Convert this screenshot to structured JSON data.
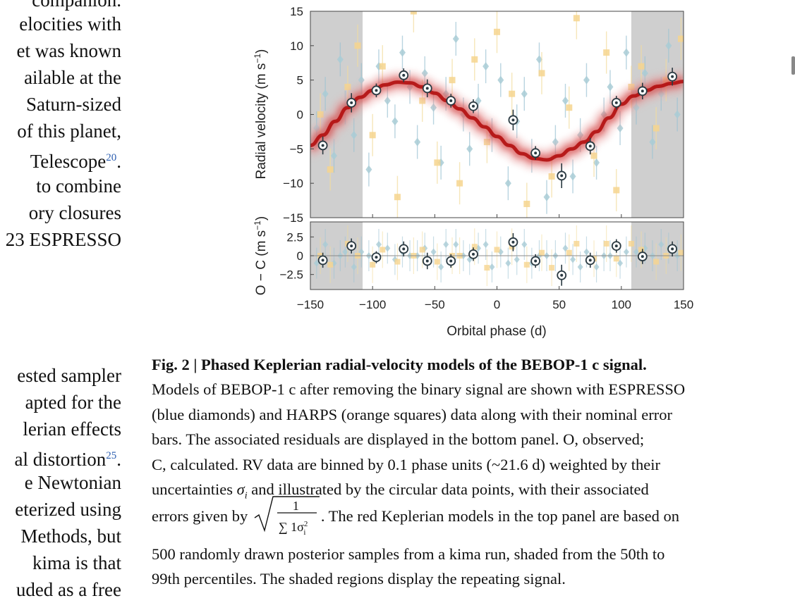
{
  "left_text": [
    "companion.",
    "elocities with",
    "et was known",
    "ailable at the",
    "Saturn-sized",
    "of this planet,",
    "Telescope",
    "to combine",
    "ory closures",
    "23 ESPRESSO",
    "ested sampler",
    "apted for the",
    "lerian effects",
    "al distortion",
    "e Newtonian",
    "eterized using",
    "Methods, but",
    "kima is that",
    "uded as a free"
  ],
  "left_refs": {
    "telescope": "20",
    "distortion": "25"
  },
  "figure": {
    "top_ylabel": "Radial velocity (m s",
    "bottom_ylabel": "O − C (m s",
    "unit_exp": "−1",
    "xlabel": "Orbital phase (d)",
    "top_yticks": [
      "15",
      "10",
      "5",
      "0",
      "−5",
      "−10",
      "−15"
    ],
    "bottom_yticks": [
      "2.5",
      "0",
      "−2.5"
    ],
    "xticks": [
      "−150",
      "−100",
      "−50",
      "0",
      "50",
      "100",
      "150"
    ]
  },
  "chart_data": {
    "type": "scatter",
    "xlabel": "Orbital phase (d)",
    "xlim": [
      -150,
      150
    ],
    "top_panel": {
      "ylabel": "Radial velocity (m s−1)",
      "ylim": [
        -15,
        15
      ],
      "binned_points": {
        "x": [
          -140,
          -117,
          -97,
          -75,
          -56,
          -37,
          -19,
          13,
          31,
          52,
          75,
          96,
          117,
          141
        ],
        "y": [
          -4.5,
          1.7,
          3.5,
          5.7,
          3.8,
          2.0,
          1.2,
          -0.8,
          -5.6,
          -8.9,
          -4.6,
          1.7,
          3.4,
          5.5
        ],
        "err": [
          1.3,
          1.4,
          1.0,
          1.0,
          1.3,
          1.0,
          1.0,
          1.5,
          1.0,
          1.8,
          1.2,
          1.0,
          1.2,
          1.3
        ]
      },
      "keplerian_model": {
        "x": [
          -150,
          -140,
          -130,
          -120,
          -110,
          -100,
          -90,
          -80,
          -70,
          -60,
          -50,
          -40,
          -30,
          -20,
          -10,
          0,
          10,
          20,
          30,
          40,
          50,
          60,
          70,
          80,
          90,
          100,
          110,
          120,
          130,
          140,
          150
        ],
        "y": [
          -4.5,
          -3.0,
          -1.0,
          1.0,
          2.5,
          3.5,
          4.3,
          4.7,
          4.6,
          4.0,
          3.1,
          2.0,
          0.8,
          -0.5,
          -1.8,
          -3.2,
          -4.5,
          -5.7,
          -6.4,
          -6.6,
          -6.0,
          -5.0,
          -4.0,
          -2.5,
          -0.5,
          1.5,
          2.7,
          3.5,
          4.1,
          4.5,
          4.8
        ]
      }
    },
    "bottom_panel": {
      "ylabel": "O − C (m s−1)",
      "ylim": [
        -4.5,
        4.5
      ],
      "binned_points": {
        "x": [
          -140,
          -117,
          -97,
          -75,
          -56,
          -37,
          -19,
          13,
          31,
          52,
          75,
          96,
          117,
          141
        ],
        "y": [
          -0.6,
          1.3,
          -0.2,
          0.9,
          -0.7,
          -0.7,
          0.2,
          1.8,
          -0.7,
          -2.6,
          -0.6,
          1.3,
          -0.1,
          0.9
        ],
        "err": [
          1.0,
          1.0,
          0.8,
          1.0,
          1.1,
          0.9,
          0.9,
          1.2,
          0.9,
          1.4,
          1.0,
          0.9,
          1.0,
          1.0
        ]
      }
    },
    "shaded_regions": [
      [
        -150,
        -108
      ],
      [
        108,
        150
      ]
    ],
    "espresso_points": {
      "x": [
        -145,
        -138,
        -131,
        -126,
        -122,
        -115,
        -109,
        -103,
        -95,
        -88,
        -82,
        -76,
        -70,
        -64,
        -58,
        -51,
        -45,
        -41,
        -33,
        -27,
        -22,
        -15,
        -9,
        -4,
        3,
        9,
        16,
        22,
        28,
        34,
        40,
        47,
        55,
        61,
        67,
        72,
        80,
        86,
        91,
        99,
        104,
        112,
        119,
        125,
        132,
        138,
        145
      ],
      "y": [
        -2,
        3,
        -6,
        8,
        1,
        -3,
        5,
        -8,
        7,
        2,
        -1,
        9,
        4,
        -4,
        6,
        1,
        -7,
        3,
        11,
        0,
        -5,
        2,
        7,
        -3,
        5,
        -10,
        -1,
        3,
        -6,
        8,
        -12,
        -4,
        2,
        -9,
        -3,
        5,
        -7,
        0,
        4,
        -2,
        9,
        1,
        6,
        -4,
        3,
        10,
        0
      ]
    },
    "harps_points": {
      "x": [
        -142,
        -134,
        -120,
        -112,
        -100,
        -92,
        -80,
        -67,
        -60,
        -48,
        -36,
        -30,
        -18,
        -8,
        0,
        12,
        24,
        36,
        44,
        58,
        64,
        78,
        88,
        96,
        108,
        116,
        128,
        136,
        148
      ],
      "y": [
        0,
        -8,
        4,
        10,
        -3,
        7,
        -12,
        15,
        2,
        -7,
        5,
        -10,
        8,
        -4,
        12,
        3,
        -13,
        6,
        -9,
        1,
        14,
        -6,
        9,
        -11,
        4,
        7,
        -2,
        5,
        11
      ]
    }
  },
  "caption": {
    "title": "Fig. 2 | Phased Keplerian radial-velocity models of the BEBOP-1 c signal.",
    "lines": [
      "Models of BEBOP-1 c after removing the binary signal are shown with ESPRESSO",
      "(blue diamonds) and HARPS (orange squares) data along with their nominal error",
      "bars. The associated residuals are displayed in the bottom panel. O, observed;",
      "C, calculated. RV data are binned by 0.1 phase units (~21.6 d) weighted by their"
    ],
    "line5_a": "uncertainties ",
    "sigma": "σ",
    "sigma_sub": "i",
    "line5_b": " and illustrated by the circular data points, with their associated",
    "line6_a": "errors given by",
    "frac_num": "1",
    "frac_den": "∑ 1σ",
    "frac_den_sup": "2",
    "frac_den_sub": "i",
    "line6_b": ". The red Keplerian models in the top panel are based on",
    "lines_end": [
      "500 randomly drawn posterior samples from a kima run, shaded from the 50th to",
      "99th percentiles. The shaded regions display the repeating signal."
    ]
  }
}
